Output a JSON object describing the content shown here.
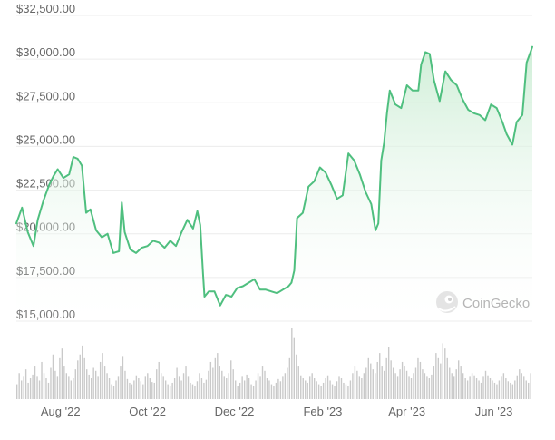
{
  "chart_data": {
    "type": "area",
    "title": "",
    "xlabel": "",
    "ylabel": "",
    "currency_prefix": "$",
    "ylim": [
      15000,
      32500
    ],
    "y_ticks": [
      {
        "value": 32500,
        "label": "$32,500.00"
      },
      {
        "value": 30000,
        "label": "$30,000.00"
      },
      {
        "value": 27500,
        "label": "$27,500.00"
      },
      {
        "value": 25000,
        "label": "$25,000.00"
      },
      {
        "value": 22500,
        "label": "$22,500.00"
      },
      {
        "value": 20000,
        "label": "$20,000.00"
      },
      {
        "value": 17500,
        "label": "$17,500.00"
      },
      {
        "value": 15000,
        "label": "$15,000.00"
      }
    ],
    "x_range": [
      "2022-07-01",
      "2023-06-28"
    ],
    "x_ticks": [
      {
        "date": "2022-08-01",
        "label": "Aug '22"
      },
      {
        "date": "2022-10-01",
        "label": "Oct '22"
      },
      {
        "date": "2022-12-01",
        "label": "Dec '22"
      },
      {
        "date": "2023-02-01",
        "label": "Feb '23"
      },
      {
        "date": "2023-04-01",
        "label": "Apr '23"
      },
      {
        "date": "2023-06-01",
        "label": "Jun '23"
      }
    ],
    "price_series": {
      "x": [
        "2022-07-01",
        "2022-07-05",
        "2022-07-09",
        "2022-07-13",
        "2022-07-16",
        "2022-07-20",
        "2022-07-24",
        "2022-07-27",
        "2022-07-30",
        "2022-08-03",
        "2022-08-07",
        "2022-08-10",
        "2022-08-13",
        "2022-08-16",
        "2022-08-19",
        "2022-08-22",
        "2022-08-26",
        "2022-08-30",
        "2022-09-03",
        "2022-09-07",
        "2022-09-11",
        "2022-09-13",
        "2022-09-15",
        "2022-09-19",
        "2022-09-23",
        "2022-09-27",
        "2022-10-01",
        "2022-10-05",
        "2022-10-09",
        "2022-10-13",
        "2022-10-17",
        "2022-10-21",
        "2022-10-25",
        "2022-10-29",
        "2022-11-02",
        "2022-11-05",
        "2022-11-07",
        "2022-11-09",
        "2022-11-10",
        "2022-11-13",
        "2022-11-17",
        "2022-11-21",
        "2022-11-25",
        "2022-11-29",
        "2022-12-03",
        "2022-12-07",
        "2022-12-11",
        "2022-12-15",
        "2022-12-19",
        "2022-12-23",
        "2022-12-27",
        "2022-12-31",
        "2023-01-04",
        "2023-01-08",
        "2023-01-10",
        "2023-01-12",
        "2023-01-14",
        "2023-01-18",
        "2023-01-22",
        "2023-01-26",
        "2023-01-30",
        "2023-02-03",
        "2023-02-07",
        "2023-02-11",
        "2023-02-15",
        "2023-02-19",
        "2023-02-23",
        "2023-02-27",
        "2023-03-03",
        "2023-03-07",
        "2023-03-10",
        "2023-03-12",
        "2023-03-14",
        "2023-03-16",
        "2023-03-18",
        "2023-03-20",
        "2023-03-24",
        "2023-03-28",
        "2023-04-01",
        "2023-04-05",
        "2023-04-09",
        "2023-04-11",
        "2023-04-14",
        "2023-04-17",
        "2023-04-20",
        "2023-04-24",
        "2023-04-28",
        "2023-05-02",
        "2023-05-06",
        "2023-05-10",
        "2023-05-14",
        "2023-05-18",
        "2023-05-22",
        "2023-05-26",
        "2023-05-30",
        "2023-06-03",
        "2023-06-07",
        "2023-06-10",
        "2023-06-14",
        "2023-06-17",
        "2023-06-21",
        "2023-06-24",
        "2023-06-28"
      ],
      "y": [
        20600,
        21500,
        20100,
        19300,
        20800,
        21900,
        22800,
        23300,
        23700,
        23200,
        23400,
        24400,
        24300,
        23900,
        21200,
        21400,
        20200,
        19800,
        20000,
        18900,
        19000,
        21800,
        20100,
        19100,
        18900,
        19200,
        19300,
        19600,
        19500,
        19200,
        19600,
        19300,
        20100,
        20800,
        20300,
        21300,
        20500,
        17700,
        16400,
        16700,
        16700,
        15900,
        16500,
        16400,
        16900,
        17000,
        17200,
        17400,
        16800,
        16800,
        16700,
        16600,
        16800,
        17000,
        17200,
        17900,
        20900,
        21200,
        22700,
        23000,
        23800,
        23500,
        22800,
        22000,
        22200,
        24600,
        24200,
        23400,
        22400,
        21700,
        20200,
        20600,
        24200,
        25200,
        26900,
        28200,
        27400,
        27200,
        28500,
        28200,
        28200,
        29700,
        30400,
        30300,
        28800,
        27600,
        29300,
        28800,
        28500,
        27700,
        27100,
        26900,
        26800,
        26500,
        27400,
        27200,
        26400,
        25700,
        25100,
        26400,
        26800,
        29800,
        30700
      ]
    },
    "volume_series": {
      "values": [
        0.2,
        0.35,
        0.25,
        0.3,
        0.4,
        0.22,
        0.28,
        0.33,
        0.45,
        0.3,
        0.25,
        0.5,
        0.35,
        0.28,
        0.22,
        0.42,
        0.6,
        0.38,
        0.3,
        0.55,
        0.68,
        0.45,
        0.35,
        0.3,
        0.25,
        0.28,
        0.4,
        0.52,
        0.6,
        0.72,
        0.55,
        0.4,
        0.33,
        0.28,
        0.42,
        0.38,
        0.3,
        0.5,
        0.62,
        0.45,
        0.35,
        0.28,
        0.2,
        0.18,
        0.25,
        0.3,
        0.45,
        0.58,
        0.38,
        0.27,
        0.22,
        0.2,
        0.25,
        0.32,
        0.28,
        0.24,
        0.2,
        0.3,
        0.35,
        0.28,
        0.23,
        0.22,
        0.4,
        0.5,
        0.35,
        0.3,
        0.25,
        0.2,
        0.18,
        0.22,
        0.28,
        0.42,
        0.3,
        0.25,
        0.35,
        0.45,
        0.3,
        0.22,
        0.2,
        0.18,
        0.24,
        0.35,
        0.28,
        0.22,
        0.26,
        0.38,
        0.5,
        0.42,
        0.55,
        0.62,
        0.45,
        0.38,
        0.3,
        0.28,
        0.35,
        0.52,
        0.4,
        0.25,
        0.18,
        0.22,
        0.3,
        0.25,
        0.33,
        0.28,
        0.2,
        0.18,
        0.25,
        0.35,
        0.3,
        0.45,
        0.38,
        0.28,
        0.25,
        0.2,
        0.18,
        0.22,
        0.27,
        0.24,
        0.3,
        0.35,
        0.42,
        0.55,
        0.95,
        0.82,
        0.6,
        0.45,
        0.32,
        0.28,
        0.25,
        0.22,
        0.3,
        0.35,
        0.28,
        0.24,
        0.2,
        0.18,
        0.22,
        0.28,
        0.32,
        0.25,
        0.2,
        0.18,
        0.24,
        0.3,
        0.28,
        0.22,
        0.2,
        0.18,
        0.25,
        0.35,
        0.45,
        0.38,
        0.3,
        0.28,
        0.35,
        0.42,
        0.55,
        0.48,
        0.4,
        0.35,
        0.5,
        0.62,
        0.45,
        0.38,
        0.55,
        0.7,
        0.52,
        0.42,
        0.35,
        0.3,
        0.4,
        0.5,
        0.45,
        0.38,
        0.3,
        0.28,
        0.35,
        0.42,
        0.55,
        0.5,
        0.4,
        0.35,
        0.3,
        0.28,
        0.33,
        0.45,
        0.62,
        0.55,
        0.48,
        0.75,
        0.68,
        0.55,
        0.42,
        0.35,
        0.3,
        0.4,
        0.52,
        0.45,
        0.35,
        0.28,
        0.25,
        0.3,
        0.35,
        0.32,
        0.28,
        0.25,
        0.22,
        0.3,
        0.38,
        0.32,
        0.28,
        0.25,
        0.22,
        0.2,
        0.25,
        0.3,
        0.35,
        0.28,
        0.24,
        0.22,
        0.2,
        0.25,
        0.32,
        0.4,
        0.35,
        0.3,
        0.25,
        0.22,
        0.35
      ]
    },
    "grid": true,
    "legend": "none",
    "colors": {
      "line": "#4fbf7f",
      "area_top": "#c9ecd2",
      "area_bottom": "#ffffff",
      "grid": "#ececec",
      "volume_bar": "#c9c9c9",
      "axis_text": "#666666"
    },
    "watermark": {
      "text": "CoinGecko",
      "icon": "gecko-logo-icon"
    }
  }
}
